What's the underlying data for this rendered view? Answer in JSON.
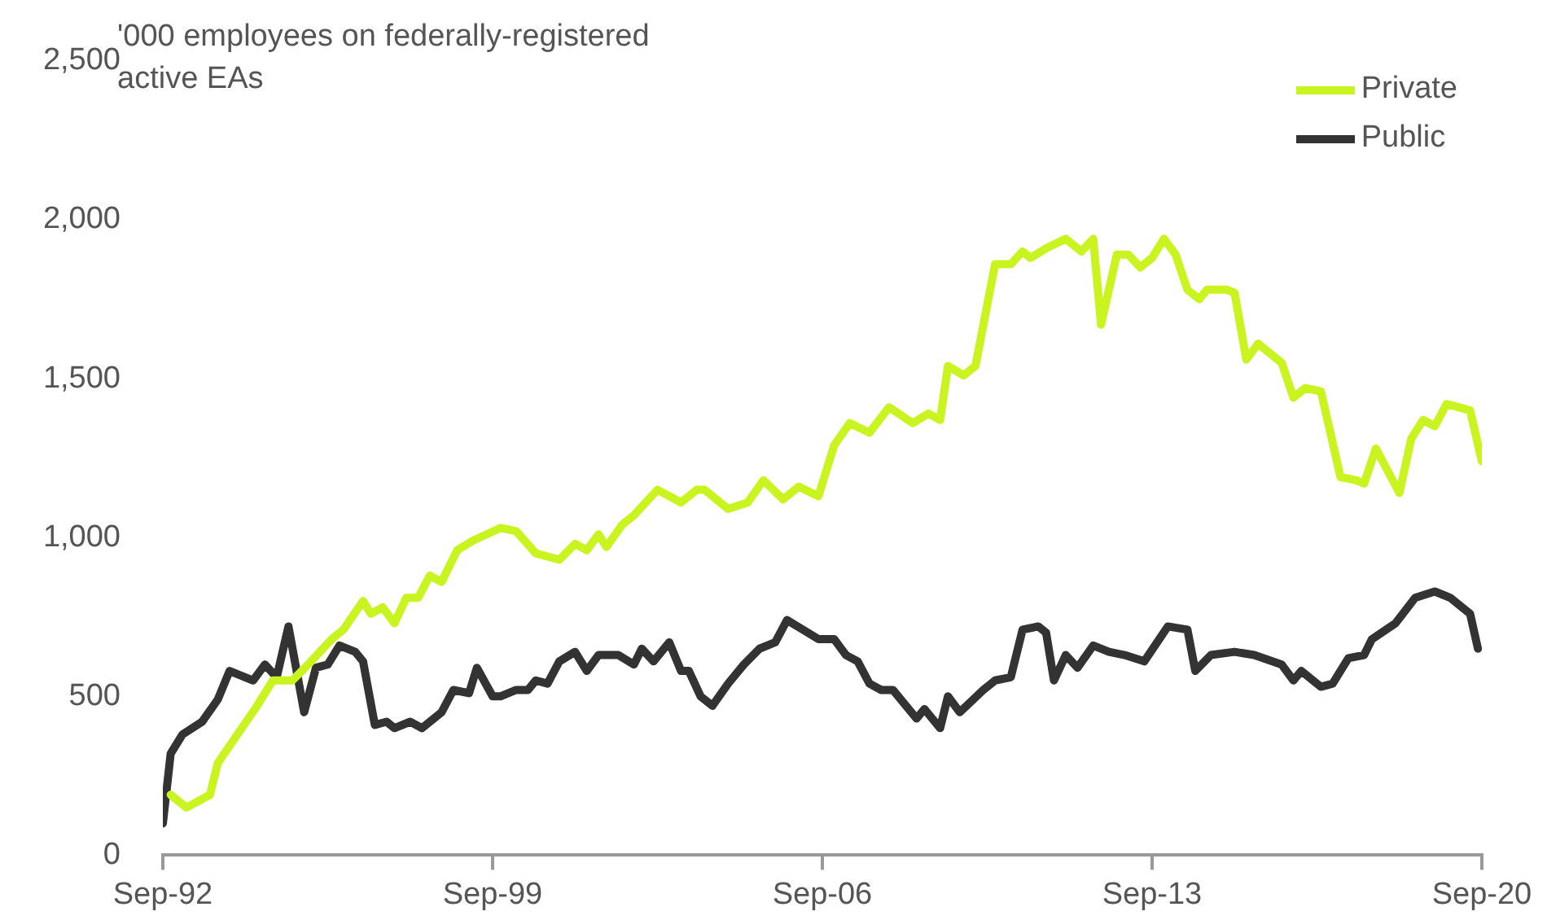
{
  "chart_data": {
    "type": "line",
    "ylabel": "'000 employees on federally-registered active EAs",
    "xlim": [
      "1992-09",
      "2020-09"
    ],
    "xticks": [
      {
        "value": "1992-09",
        "label": "Sep-92"
      },
      {
        "value": "1999-09",
        "label": "Sep-99"
      },
      {
        "value": "2006-09",
        "label": "Sep-06"
      },
      {
        "value": "2013-09",
        "label": "Sep-13"
      },
      {
        "value": "2020-09",
        "label": "Sep-20"
      }
    ],
    "ylim": [
      0,
      2500
    ],
    "yticks": [
      0,
      500,
      {
        "value": 1000,
        "label": "1,000"
      },
      {
        "value": 1500,
        "label": "1,500"
      },
      {
        "value": 2000,
        "label": "2,000"
      },
      {
        "value": 2500,
        "label": "2,500"
      }
    ],
    "grid": false,
    "legend": "top right",
    "marker": "none",
    "line_style": "solid",
    "series": [
      {
        "name": "Private",
        "color": "#c9f41f",
        "x": [
          "1992-11",
          "1993-03",
          "1993-09",
          "1993-11",
          "1994-09",
          "1995-01",
          "1995-06",
          "1995-10",
          "1996-04",
          "1996-07",
          "1996-12",
          "1997-02",
          "1997-05",
          "1997-08",
          "1997-11",
          "1998-02",
          "1998-05",
          "1998-08",
          "1998-12",
          "1999-04",
          "1999-11",
          "2000-03",
          "2000-08",
          "2001-02",
          "2001-06",
          "2001-09",
          "2001-12",
          "2002-02",
          "2002-06",
          "2002-09",
          "2003-03",
          "2003-09",
          "2004-01",
          "2004-03",
          "2004-09",
          "2005-02",
          "2005-06",
          "2005-11",
          "2006-03",
          "2006-08",
          "2006-12",
          "2007-04",
          "2007-09",
          "2008-02",
          "2008-08",
          "2008-12",
          "2009-03",
          "2009-05",
          "2009-09",
          "2009-12",
          "2010-05",
          "2010-09",
          "2010-12",
          "2011-02",
          "2011-06",
          "2011-11",
          "2012-03",
          "2012-06",
          "2012-08",
          "2012-12",
          "2013-03",
          "2013-06",
          "2013-09",
          "2013-12",
          "2014-03",
          "2014-06",
          "2014-09",
          "2014-11",
          "2015-04",
          "2015-06",
          "2015-09",
          "2015-12",
          "2016-06",
          "2016-09",
          "2016-12",
          "2017-04",
          "2017-09",
          "2018-01",
          "2018-03",
          "2018-06",
          "2018-12",
          "2019-03",
          "2019-06",
          "2019-09",
          "2019-12",
          "2020-03",
          "2020-06",
          "2020-09"
        ],
        "values": [
          190,
          150,
          190,
          290,
          470,
          550,
          550,
          600,
          680,
          710,
          800,
          760,
          780,
          730,
          810,
          810,
          880,
          860,
          960,
          990,
          1030,
          1020,
          950,
          930,
          980,
          960,
          1010,
          970,
          1040,
          1070,
          1150,
          1110,
          1150,
          1150,
          1090,
          1110,
          1180,
          1120,
          1160,
          1130,
          1290,
          1360,
          1330,
          1410,
          1360,
          1390,
          1370,
          1540,
          1510,
          1540,
          1860,
          1860,
          1900,
          1880,
          1910,
          1940,
          1900,
          1940,
          1670,
          1890,
          1890,
          1850,
          1880,
          1940,
          1890,
          1780,
          1750,
          1780,
          1780,
          1770,
          1560,
          1610,
          1550,
          1440,
          1470,
          1460,
          1190,
          1180,
          1170,
          1280,
          1140,
          1310,
          1370,
          1350,
          1420,
          1410,
          1400,
          1240
        ]
      },
      {
        "name": "Public",
        "color": "#333333",
        "x": [
          "1992-09",
          "1992-11",
          "1993-02",
          "1993-07",
          "1993-11",
          "1994-02",
          "1994-08",
          "1994-11",
          "1995-02",
          "1995-05",
          "1995-09",
          "1995-12",
          "1996-03",
          "1996-06",
          "1996-10",
          "1996-12",
          "1997-03",
          "1997-06",
          "1997-08",
          "1997-12",
          "1998-03",
          "1998-08",
          "1998-11",
          "1999-03",
          "1999-05",
          "1999-09",
          "1999-11",
          "2000-03",
          "2000-06",
          "2000-08",
          "2000-11",
          "2001-02",
          "2001-06",
          "2001-09",
          "2001-12",
          "2002-05",
          "2002-09",
          "2002-11",
          "2003-02",
          "2003-06",
          "2003-09",
          "2003-11",
          "2004-02",
          "2004-05",
          "2004-09",
          "2005-01",
          "2005-05",
          "2005-09",
          "2005-12",
          "2006-04",
          "2006-08",
          "2006-12",
          "2007-03",
          "2007-06",
          "2007-09",
          "2007-12",
          "2008-03",
          "2008-09",
          "2008-11",
          "2009-03",
          "2009-05",
          "2009-08",
          "2010-02",
          "2010-05",
          "2010-09",
          "2010-12",
          "2011-04",
          "2011-06",
          "2011-08",
          "2011-11",
          "2012-02",
          "2012-06",
          "2012-10",
          "2013-02",
          "2013-07",
          "2014-01",
          "2014-06",
          "2014-08",
          "2014-12",
          "2015-06",
          "2015-11",
          "2016-06",
          "2016-09",
          "2016-11",
          "2017-04",
          "2017-07",
          "2017-11",
          "2018-03",
          "2018-05",
          "2018-11",
          "2019-04",
          "2019-09",
          "2020-01",
          "2020-06",
          "2020-08"
        ],
        "values": [
          100,
          320,
          380,
          420,
          490,
          580,
          550,
          600,
          560,
          720,
          450,
          590,
          600,
          660,
          640,
          610,
          410,
          420,
          400,
          420,
          400,
          450,
          520,
          510,
          590,
          500,
          500,
          520,
          520,
          550,
          540,
          610,
          640,
          580,
          630,
          630,
          600,
          650,
          610,
          670,
          580,
          580,
          500,
          470,
          540,
          600,
          650,
          670,
          740,
          710,
          680,
          680,
          630,
          610,
          540,
          520,
          520,
          430,
          460,
          400,
          500,
          450,
          520,
          550,
          560,
          710,
          720,
          700,
          550,
          630,
          590,
          660,
          640,
          630,
          610,
          720,
          710,
          580,
          630,
          640,
          630,
          600,
          550,
          580,
          530,
          540,
          620,
          630,
          680,
          730,
          810,
          830,
          810,
          760,
          650
        ]
      }
    ]
  }
}
